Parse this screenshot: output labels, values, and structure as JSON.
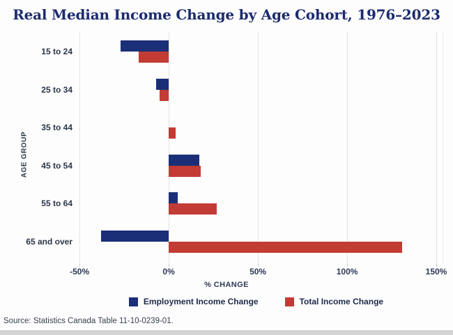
{
  "title": "Real Median Income Change by Age Cohort, 1976–2023",
  "source_note": "Source: Statistics Canada Table 11-10-0239-01.",
  "colors": {
    "employment_series": "#1b2f78",
    "total_series": "#c23b34",
    "title_text": "#1c2b6e",
    "axis_text": "#2e3a55",
    "gridline": "#e4e4e4"
  },
  "chart_data": {
    "type": "bar",
    "orientation": "horizontal",
    "title": "Real Median Income Change by Age Cohort, 1976–2023",
    "xlabel": "% CHANGE",
    "ylabel": "AGE GROUP",
    "categories": [
      "15 to 24",
      "25 to 34",
      "35 to 44",
      "45 to 54",
      "55 to 64",
      "65 and over"
    ],
    "series": [
      {
        "name": "Employment Income Change",
        "color": "#1b2f78",
        "values": [
          -27,
          -7,
          0,
          17,
          5,
          -38
        ]
      },
      {
        "name": "Total Income Change",
        "color": "#c23b34",
        "values": [
          -17,
          -5,
          4,
          18,
          27,
          131
        ]
      }
    ],
    "x_ticks": [
      {
        "label": "-50%",
        "value": -50
      },
      {
        "label": "0%",
        "value": 0
      },
      {
        "label": "50%",
        "value": 50
      },
      {
        "label": "100%",
        "value": 100
      },
      {
        "label": "150%",
        "value": 150
      }
    ],
    "xlim": [
      -55.5,
      153.5
    ],
    "grid": true,
    "legend_position": "bottom"
  }
}
